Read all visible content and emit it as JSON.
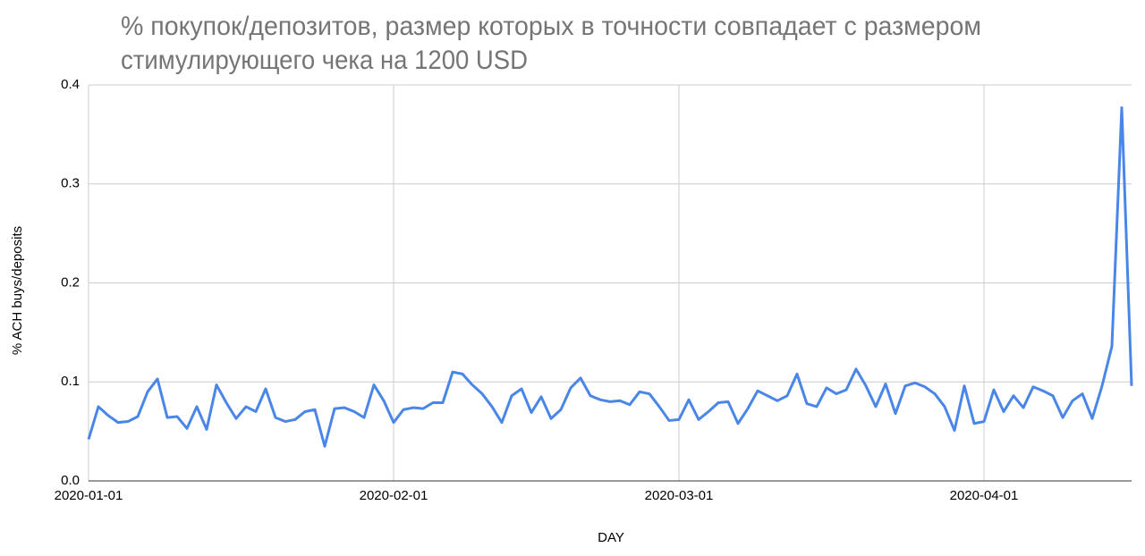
{
  "chart_data": {
    "type": "line",
    "title": [
      "% покупок/депозитов, размер которых в точности совпадает с размером",
      "стимулирующего чека на 1200 USD"
    ],
    "x_label": "DAY",
    "y_label": "% ACH buys/deposits",
    "color": "#4a86e8",
    "grid": true,
    "xlim": [
      "2020-01-01",
      "2020-04-16"
    ],
    "xticks": [
      "2020-01-01",
      "2020-02-01",
      "2020-03-01",
      "2020-04-01"
    ],
    "ylim": [
      0,
      0.4
    ],
    "yticks": [
      {
        "value": 0,
        "label": "0.0"
      },
      0.1,
      0.2,
      0.3,
      0.4
    ],
    "x": [
      "2020-01-01",
      "2020-01-02",
      "2020-01-03",
      "2020-01-04",
      "2020-01-05",
      "2020-01-06",
      "2020-01-07",
      "2020-01-08",
      "2020-01-09",
      "2020-01-10",
      "2020-01-11",
      "2020-01-12",
      "2020-01-13",
      "2020-01-14",
      "2020-01-15",
      "2020-01-16",
      "2020-01-17",
      "2020-01-18",
      "2020-01-19",
      "2020-01-20",
      "2020-01-21",
      "2020-01-22",
      "2020-01-23",
      "2020-01-24",
      "2020-01-25",
      "2020-01-26",
      "2020-01-27",
      "2020-01-28",
      "2020-01-29",
      "2020-01-30",
      "2020-01-31",
      "2020-02-01",
      "2020-02-02",
      "2020-02-03",
      "2020-02-04",
      "2020-02-05",
      "2020-02-06",
      "2020-02-07",
      "2020-02-08",
      "2020-02-09",
      "2020-02-10",
      "2020-02-11",
      "2020-02-12",
      "2020-02-13",
      "2020-02-14",
      "2020-02-15",
      "2020-02-16",
      "2020-02-17",
      "2020-02-18",
      "2020-02-19",
      "2020-02-20",
      "2020-02-21",
      "2020-02-22",
      "2020-02-23",
      "2020-02-24",
      "2020-02-25",
      "2020-02-26",
      "2020-02-27",
      "2020-02-28",
      "2020-02-29",
      "2020-03-01",
      "2020-03-02",
      "2020-03-03",
      "2020-03-04",
      "2020-03-05",
      "2020-03-06",
      "2020-03-07",
      "2020-03-08",
      "2020-03-09",
      "2020-03-10",
      "2020-03-11",
      "2020-03-12",
      "2020-03-13",
      "2020-03-14",
      "2020-03-15",
      "2020-03-16",
      "2020-03-17",
      "2020-03-18",
      "2020-03-19",
      "2020-03-20",
      "2020-03-21",
      "2020-03-22",
      "2020-03-23",
      "2020-03-24",
      "2020-03-25",
      "2020-03-26",
      "2020-03-27",
      "2020-03-28",
      "2020-03-29",
      "2020-03-30",
      "2020-03-31",
      "2020-04-01",
      "2020-04-02",
      "2020-04-03",
      "2020-04-04",
      "2020-04-05",
      "2020-04-06",
      "2020-04-07",
      "2020-04-08",
      "2020-04-09",
      "2020-04-10",
      "2020-04-11",
      "2020-04-12",
      "2020-04-13",
      "2020-04-14",
      "2020-04-15",
      "2020-04-16"
    ],
    "values": [
      0.042,
      0.075,
      0.066,
      0.059,
      0.06,
      0.065,
      0.09,
      0.103,
      0.064,
      0.065,
      0.053,
      0.075,
      0.052,
      0.097,
      0.079,
      0.063,
      0.075,
      0.07,
      0.093,
      0.064,
      0.06,
      0.062,
      0.07,
      0.072,
      0.035,
      0.073,
      0.074,
      0.07,
      0.064,
      0.097,
      0.081,
      0.059,
      0.072,
      0.074,
      0.073,
      0.079,
      0.079,
      0.11,
      0.108,
      0.097,
      0.088,
      0.075,
      0.059,
      0.086,
      0.093,
      0.069,
      0.085,
      0.063,
      0.072,
      0.094,
      0.104,
      0.086,
      0.082,
      0.08,
      0.081,
      0.077,
      0.09,
      0.088,
      0.075,
      0.061,
      0.062,
      0.082,
      0.062,
      0.07,
      0.079,
      0.08,
      0.058,
      0.073,
      0.091,
      0.086,
      0.081,
      0.086,
      0.108,
      0.078,
      0.075,
      0.094,
      0.088,
      0.092,
      0.113,
      0.096,
      0.075,
      0.098,
      0.068,
      0.096,
      0.099,
      0.095,
      0.088,
      0.075,
      0.051,
      0.096,
      0.058,
      0.06,
      0.092,
      0.07,
      0.086,
      0.074,
      0.095,
      0.091,
      0.086,
      0.064,
      0.081,
      0.088,
      0.063,
      0.096,
      0.136,
      0.377,
      0.096
    ]
  }
}
